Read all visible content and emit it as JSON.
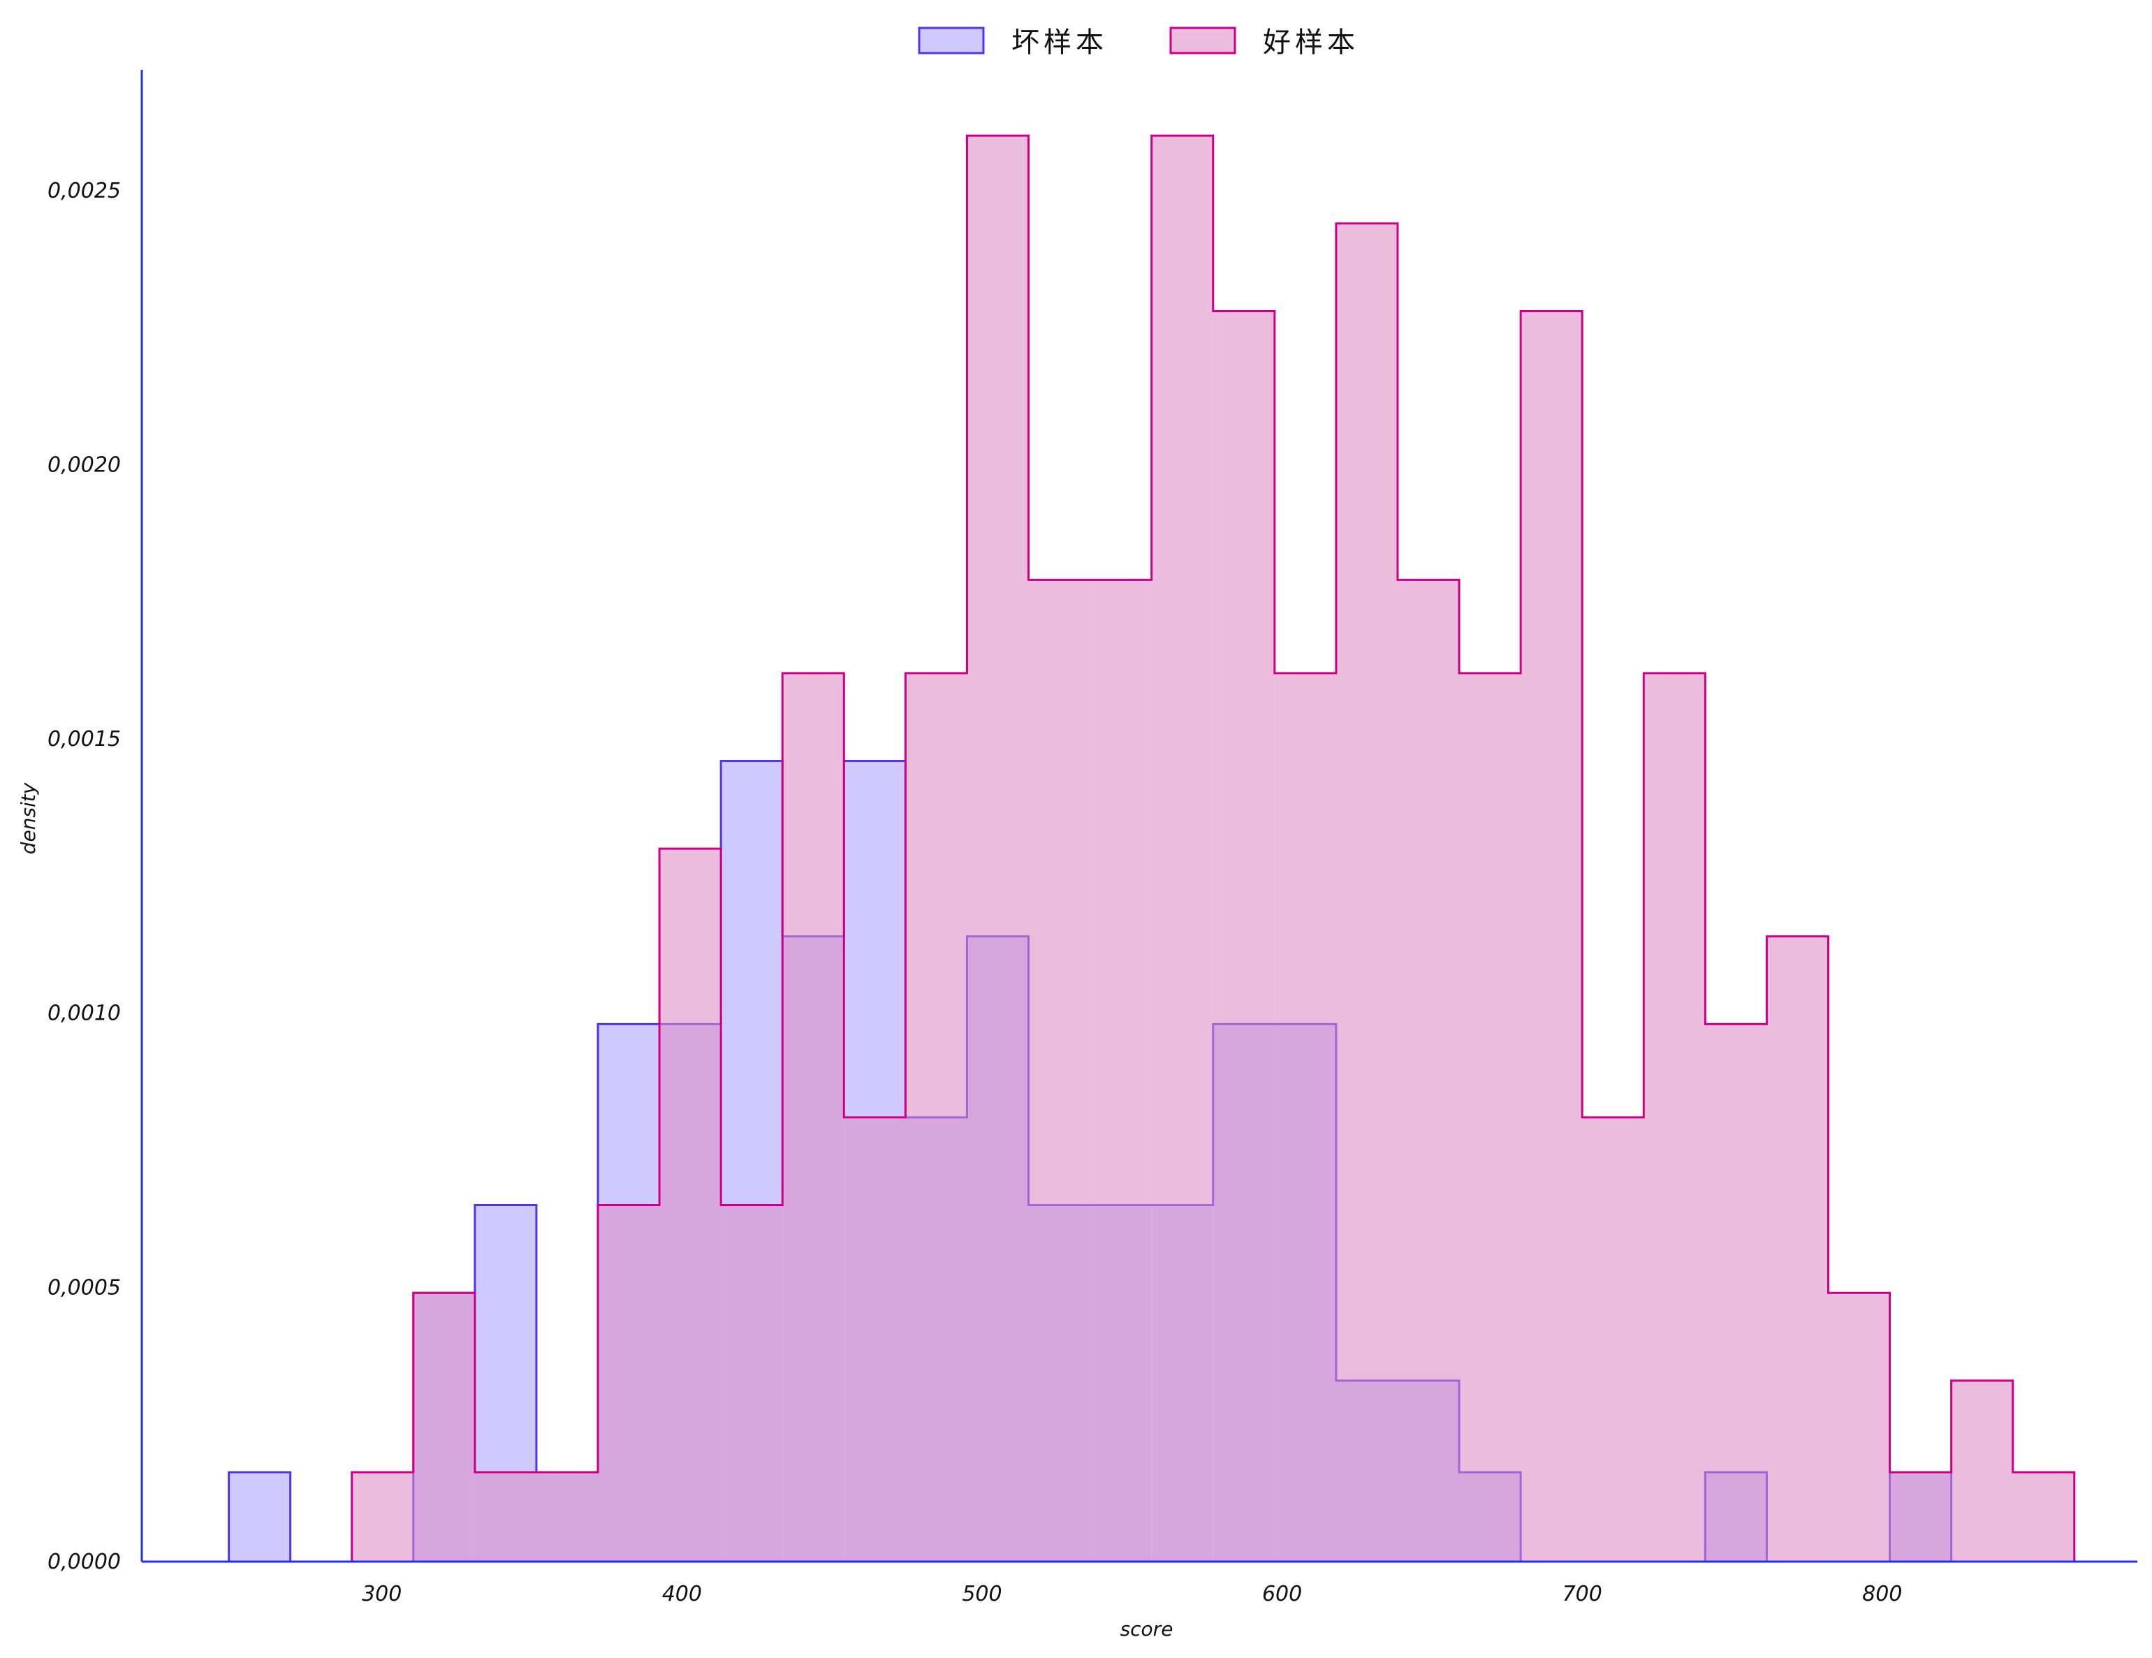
{
  "chart_data": {
    "type": "histogram",
    "title": "",
    "xlabel": "score",
    "ylabel": "density",
    "xlim": [
      220,
      885
    ],
    "ylim": [
      0,
      0.00272
    ],
    "x_ticks": [
      300,
      400,
      500,
      600,
      700,
      800
    ],
    "x_tick_labels": [
      "300",
      "400",
      "500",
      "600",
      "700",
      "800"
    ],
    "y_ticks": [
      0,
      0.0005,
      0.001,
      0.0015,
      0.002,
      0.0025
    ],
    "y_tick_labels": [
      "0,0000",
      "0,0005",
      "0,0010",
      "0,0015",
      "0,0020",
      "0,0025"
    ],
    "grid": false,
    "legend_position": "top-center",
    "axis_color": "#2233dd",
    "series": [
      {
        "name": "坏样本",
        "fill": "#cfcaff",
        "fill_opacity": 1,
        "stroke": "#5533ee",
        "bin_edges": [
          249,
          269.5,
          290,
          310.5,
          331,
          351.5,
          372,
          392.5,
          413,
          433.5,
          454,
          474.5,
          495,
          515.5,
          536,
          556.5,
          577,
          597.5,
          618,
          638.5,
          659,
          679.5,
          700,
          720.5,
          741,
          761.5,
          782,
          802.5,
          823
        ],
        "values": [
          0.000163,
          0,
          0,
          0.00049,
          0.00065,
          0.000163,
          0.00098,
          0.00098,
          0.00146,
          0.00114,
          0.00146,
          0.00081,
          0.00114,
          0.00065,
          0.00065,
          0.00065,
          0.00098,
          0.00098,
          0.00033,
          0.00033,
          0.000163,
          0,
          0,
          0,
          0.000163,
          0,
          0,
          0.000163
        ]
      },
      {
        "name": "好样本",
        "fill": "#dc8cc2",
        "fill_opacity": 0.58,
        "stroke": "#cc0088",
        "bin_edges": [
          290,
          310.5,
          331,
          351.5,
          372,
          392.5,
          413,
          433.5,
          454,
          474.5,
          495,
          515.5,
          536,
          556.5,
          577,
          597.5,
          618,
          638.5,
          659,
          679.5,
          700,
          720.5,
          741,
          761.5,
          782,
          802.5,
          823,
          843.5,
          864
        ],
        "values": [
          0.000163,
          0.00049,
          0.000163,
          0.000163,
          0.00065,
          0.0013,
          0.00065,
          0.00162,
          0.00081,
          0.00162,
          0.0026,
          0.00179,
          0.00179,
          0.0026,
          0.00228,
          0.00162,
          0.00244,
          0.00179,
          0.00162,
          0.00228,
          0.00081,
          0.00162,
          0.00098,
          0.00114,
          0.00049,
          0.000163,
          0.00033,
          0.000163
        ]
      }
    ]
  }
}
